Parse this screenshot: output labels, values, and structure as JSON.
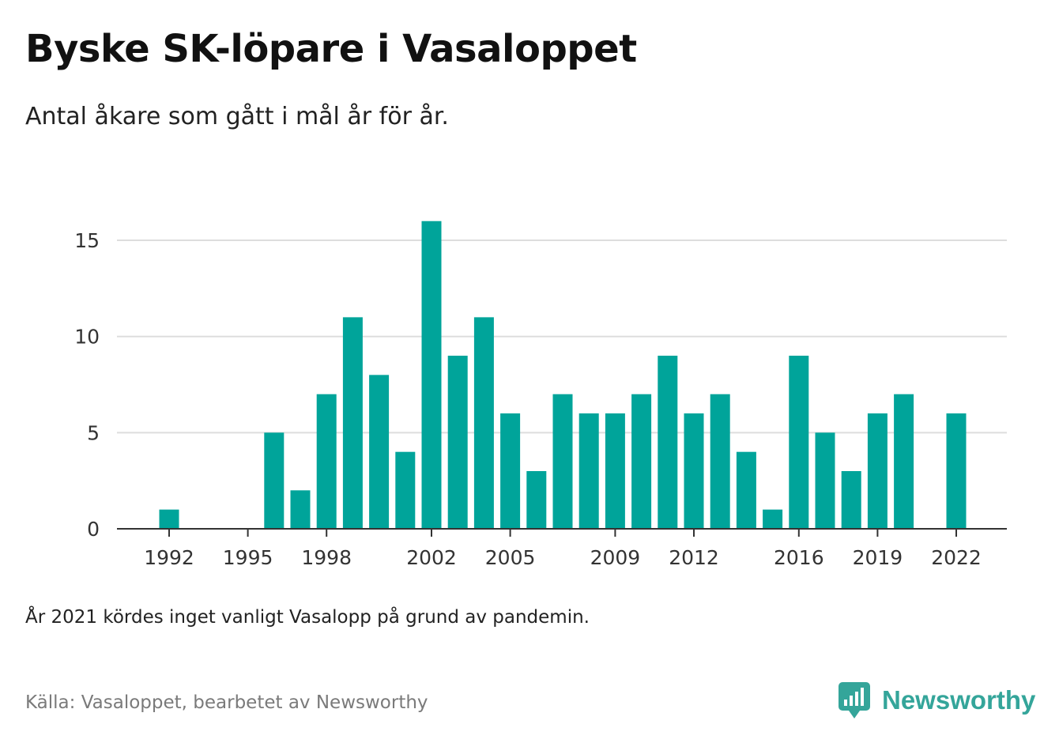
{
  "title": "Byske SK-löpare i Vasaloppet",
  "subtitle": "Antal åkare som gått i mål år för år.",
  "note": "År 2021 kördes inget vanligt Vasalopp på grund av pandemin.",
  "source": "Källa: Vasaloppet, bearbetet av Newsworthy",
  "brand": {
    "name": "Newsworthy",
    "icon": "newsworthy-logo-icon",
    "color": "#34a59a"
  },
  "chart_data": {
    "type": "bar",
    "x": [
      1992,
      1993,
      1994,
      1995,
      1996,
      1997,
      1998,
      1999,
      2000,
      2001,
      2002,
      2003,
      2004,
      2005,
      2006,
      2007,
      2008,
      2009,
      2010,
      2011,
      2012,
      2013,
      2014,
      2015,
      2016,
      2017,
      2018,
      2019,
      2020,
      2021,
      2022
    ],
    "values": [
      1,
      0,
      0,
      0,
      5,
      2,
      7,
      11,
      8,
      4,
      16,
      9,
      11,
      6,
      3,
      7,
      6,
      6,
      7,
      9,
      6,
      7,
      4,
      1,
      9,
      5,
      3,
      6,
      7,
      0,
      6
    ],
    "x_ticks": [
      1992,
      1995,
      1998,
      2002,
      2005,
      2009,
      2012,
      2016,
      2019,
      2022
    ],
    "y_ticks": [
      0,
      5,
      10,
      15
    ],
    "ylim": [
      0,
      16
    ],
    "grid": true,
    "bar_color": "#00a49a",
    "grid_color": "#dddddd",
    "axis_color": "#333333"
  }
}
